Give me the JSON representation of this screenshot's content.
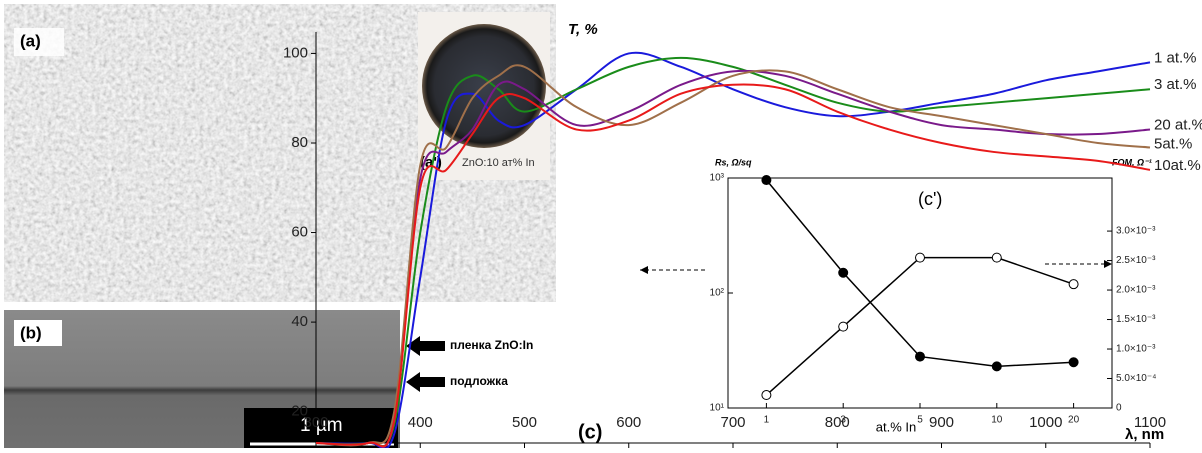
{
  "panels": {
    "a": {
      "label": "(a)",
      "inset_label": "(a')",
      "inset_caption": "ZnO:10 ат% In"
    },
    "b": {
      "label": "(b)",
      "film_label": "пленка ZnO:In",
      "substrate_label": "подложка",
      "scale_bar": "1 µm"
    }
  },
  "chart_data": [
    {
      "type": "line",
      "label": "(c)",
      "ylabel": "T, %",
      "xlabel": "λ, nm",
      "x": [
        300,
        350,
        375,
        400,
        425,
        450,
        475,
        500,
        550,
        600,
        650,
        700,
        750,
        800,
        850,
        900,
        950,
        1000,
        1050,
        1100
      ],
      "xlim": [
        300,
        1100
      ],
      "xticks": [
        300,
        400,
        500,
        600,
        700,
        800,
        900,
        1000,
        1100
      ],
      "ylim": [
        13,
        103
      ],
      "yticks": [
        20,
        40,
        60,
        80,
        100
      ],
      "series": [
        {
          "name": "1 at.%",
          "color": "#1a1adc",
          "values": [
            13,
            13,
            15,
            50,
            85,
            91,
            85,
            84,
            92,
            100,
            97,
            92,
            88,
            86,
            87,
            89,
            91,
            94,
            96,
            98
          ]
        },
        {
          "name": "3 at.%",
          "color": "#1a8c1a",
          "values": [
            13,
            13,
            17,
            60,
            88,
            95,
            92,
            87,
            92,
            97,
            99,
            97,
            93,
            89,
            87,
            88,
            89,
            90,
            91,
            92
          ]
        },
        {
          "name": "20 at.%",
          "color": "#7a1a8a",
          "values": [
            13,
            13,
            18,
            72,
            78,
            83,
            93,
            92,
            84,
            87,
            93,
            96,
            95,
            91,
            87,
            84,
            83,
            82,
            82,
            83
          ]
        },
        {
          "name": "5at.%",
          "color": "#a0704a",
          "values": [
            13,
            13,
            20,
            75,
            79,
            90,
            95,
            97,
            88,
            84,
            89,
            95,
            96,
            92,
            88,
            86,
            84,
            82,
            80,
            79
          ]
        },
        {
          "name": "10at.%",
          "color": "#e81a1a",
          "values": [
            13,
            13,
            18,
            70,
            74,
            82,
            90,
            90,
            83,
            85,
            91,
            93,
            92,
            87,
            83,
            80,
            78,
            77,
            76,
            74
          ]
        }
      ]
    },
    {
      "type": "line",
      "annotation": "(c')",
      "xlabel": "at.% In",
      "ylabel": "Rs, Ω/sq",
      "y2label": "FOM, Ω⁻¹",
      "categories": [
        "1",
        "3",
        "5",
        "10",
        "20"
      ],
      "ylog": true,
      "ylim": [
        10,
        1000
      ],
      "yticks": [
        {
          "value": 10,
          "label": "10¹"
        },
        {
          "value": 100,
          "label": "10²"
        },
        {
          "value": 1000,
          "label": "10³"
        }
      ],
      "y2lim": [
        0,
        0.0039
      ],
      "y2ticks": [
        0,
        {
          "value": 0.0005,
          "label": "5.0×10⁻⁴"
        },
        {
          "value": 0.001,
          "label": "1.0×10⁻³"
        },
        {
          "value": 0.0015,
          "label": "1.5×10⁻³"
        },
        {
          "value": 0.002,
          "label": "2.0×10⁻³"
        },
        {
          "value": 0.0025,
          "label": "2.5×10⁻³"
        },
        {
          "value": 0.003,
          "label": "3.0×10⁻³"
        }
      ],
      "series": [
        {
          "color": "#000000",
          "marker": "filled",
          "values": [
            960,
            150,
            28,
            23,
            25
          ]
        },
        {
          "color": "#000000",
          "marker": "open",
          "axis": "y2",
          "values": [
            0.00022,
            0.00138,
            0.00255,
            0.00255,
            0.0021
          ]
        }
      ]
    }
  ]
}
